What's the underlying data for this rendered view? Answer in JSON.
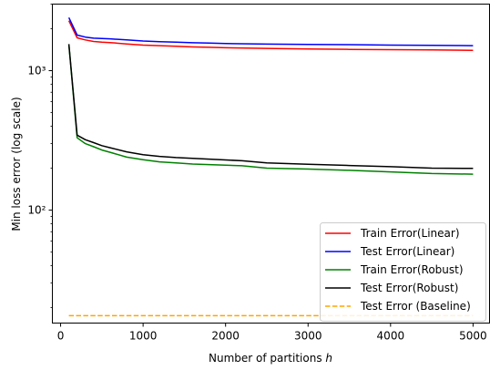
{
  "chart_data": {
    "type": "line",
    "xlabel": "Number of partitions h",
    "ylabel": "Min loss error (log scale)",
    "yscale": "log",
    "xlim": [
      -100,
      5200
    ],
    "ylim": [
      15.5,
      3000
    ],
    "xticks": [
      0,
      1000,
      2000,
      3000,
      4000,
      5000
    ],
    "xtick_labels": [
      "0",
      "1000",
      "2000",
      "3000",
      "4000",
      "5000"
    ],
    "yticks": [
      100,
      1000
    ],
    "ytick_labels": [
      "10²",
      "10³"
    ],
    "grid": false,
    "legend_position": "lower-right",
    "series": [
      {
        "name": "Train Error(Linear)",
        "color": "#ff0000",
        "dashed": false,
        "x": [
          100,
          200,
          300,
          400,
          500,
          600,
          800,
          1000,
          1200,
          1400,
          1600,
          1800,
          2000,
          2500,
          3000,
          3500,
          4000,
          4500,
          5000
        ],
        "y": [
          2280,
          1720,
          1660,
          1620,
          1600,
          1590,
          1555,
          1525,
          1510,
          1495,
          1480,
          1470,
          1460,
          1445,
          1430,
          1420,
          1415,
          1410,
          1400
        ]
      },
      {
        "name": "Test Error(Linear)",
        "color": "#0000ff",
        "dashed": false,
        "x": [
          100,
          200,
          300,
          400,
          500,
          600,
          800,
          1000,
          1200,
          1400,
          1600,
          1800,
          2000,
          2500,
          3000,
          3500,
          4000,
          4500,
          5000
        ],
        "y": [
          2400,
          1800,
          1740,
          1710,
          1700,
          1690,
          1660,
          1630,
          1615,
          1600,
          1585,
          1575,
          1565,
          1550,
          1540,
          1535,
          1525,
          1520,
          1510
        ]
      },
      {
        "name": "Train Error(Robust)",
        "color": "#008000",
        "dashed": false,
        "x": [
          100,
          200,
          300,
          400,
          500,
          600,
          800,
          1000,
          1200,
          1400,
          1600,
          1800,
          2000,
          2200,
          2500,
          3000,
          3500,
          4000,
          4500,
          5000
        ],
        "y": [
          1550,
          330,
          300,
          285,
          270,
          260,
          240,
          230,
          222,
          218,
          214,
          212,
          210,
          208,
          200,
          197,
          193,
          188,
          183,
          181
        ]
      },
      {
        "name": "Test Error(Robust)",
        "color": "#000000",
        "dashed": false,
        "x": [
          100,
          200,
          300,
          400,
          500,
          600,
          800,
          1000,
          1200,
          1400,
          1600,
          1800,
          2000,
          2200,
          2500,
          3000,
          3500,
          4000,
          4500,
          5000
        ],
        "y": [
          1550,
          345,
          320,
          305,
          290,
          280,
          262,
          250,
          243,
          238,
          235,
          232,
          229,
          226,
          218,
          213,
          209,
          205,
          200,
          199
        ]
      },
      {
        "name": "Test Error (Baseline)",
        "color": "#ffa500",
        "dashed": true,
        "x": [
          100,
          5000
        ],
        "y": [
          17.5,
          17.5
        ]
      }
    ]
  }
}
